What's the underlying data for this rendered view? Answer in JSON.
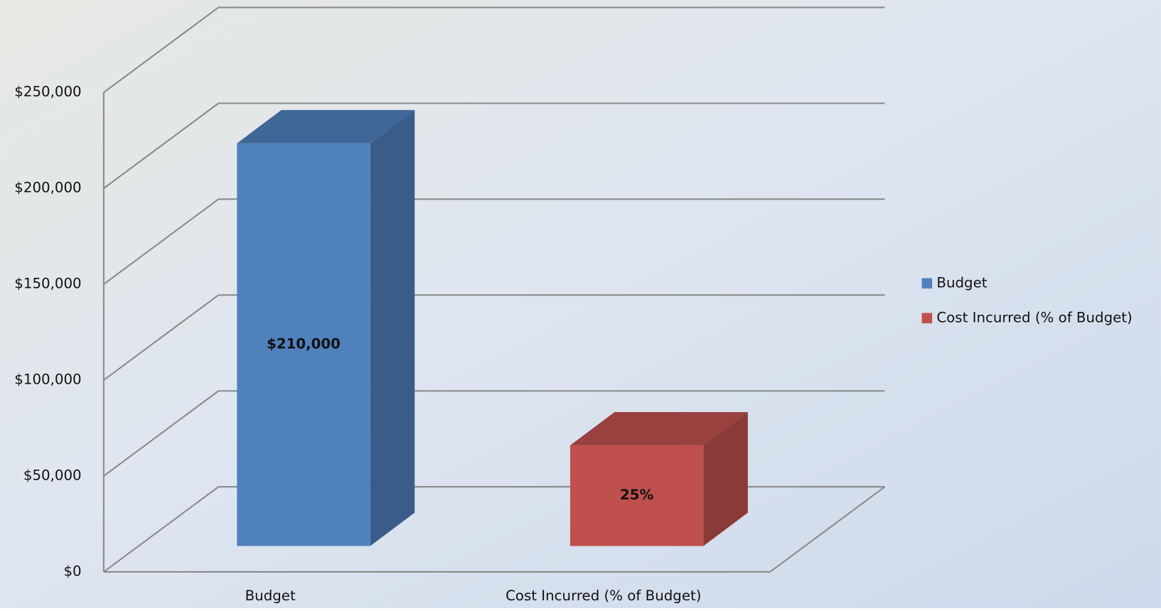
{
  "chart_data": {
    "type": "bar3d",
    "categories": [
      "Budget",
      "Cost Incurred (% of Budget)"
    ],
    "series": [
      {
        "name": "Budget",
        "color": "#4f81bd",
        "values": [
          210000,
          null
        ],
        "value_labels": [
          "$210,000",
          null
        ]
      },
      {
        "name": "Cost Incurred (% of Budget)",
        "color": "#c0504d",
        "values": [
          null,
          52500
        ],
        "value_labels": [
          null,
          "25%"
        ]
      }
    ],
    "ylim": [
      0,
      250000
    ],
    "yticks": [
      {
        "value": 0,
        "label": "$0"
      },
      {
        "value": 50000,
        "label": "$50,000"
      },
      {
        "value": 100000,
        "label": "$100,000"
      },
      {
        "value": 150000,
        "label": "$150,000"
      },
      {
        "value": 200000,
        "label": "$200,000"
      },
      {
        "value": 250000,
        "label": "$250,000"
      }
    ],
    "grid": true,
    "legend": "right"
  }
}
